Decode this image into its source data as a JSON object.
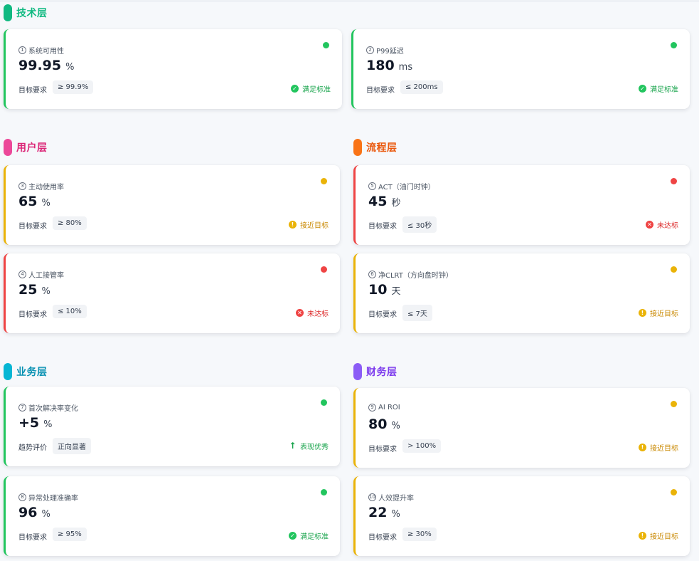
{
  "colors": {
    "green": "#22c55e",
    "yellow": "#eab308",
    "red": "#ef4444",
    "tech": "#10b981",
    "user": "#ec4899",
    "process": "#f97316",
    "business": "#06b6d4",
    "finance": "#8b5cf6"
  },
  "sections": {
    "tech": "技术层",
    "user": "用户层",
    "process": "流程层",
    "business": "业务层",
    "finance": "财务层"
  },
  "cards": [
    {
      "num": "1",
      "name": "系统可用性",
      "value": "99.95",
      "unit": "%",
      "target_label": "目标要求",
      "target": "≥ 99.9%",
      "status": "满足标准",
      "status_kind": "ok",
      "dot": "green"
    },
    {
      "num": "2",
      "name": "P99延迟",
      "value": "180",
      "unit": "ms",
      "target_label": "目标要求",
      "target": "≤ 200ms",
      "status": "满足标准",
      "status_kind": "ok",
      "dot": "green"
    },
    {
      "num": "3",
      "name": "主动使用率",
      "value": "65",
      "unit": "%",
      "target_label": "目标要求",
      "target": "≥ 80%",
      "status": "接近目标",
      "status_kind": "warn",
      "dot": "yellow"
    },
    {
      "num": "4",
      "name": "人工接管率",
      "value": "25",
      "unit": "%",
      "target_label": "目标要求",
      "target": "≤ 10%",
      "status": "未达标",
      "status_kind": "bad",
      "dot": "red"
    },
    {
      "num": "5",
      "name": "ACT（油门时钟）",
      "value": "45",
      "unit": "秒",
      "target_label": "目标要求",
      "target": "≤ 30秒",
      "status": "未达标",
      "status_kind": "bad",
      "dot": "red"
    },
    {
      "num": "6",
      "name": "净CLRT（方向盘时钟）",
      "value": "10",
      "unit": "天",
      "target_label": "目标要求",
      "target": "≤ 7天",
      "status": "接近目标",
      "status_kind": "warn",
      "dot": "yellow"
    },
    {
      "num": "7",
      "name": "首次解决率变化",
      "value": "+5",
      "unit": "%",
      "target_label": "趋势评价",
      "target": "正向显著",
      "status": "表现优秀",
      "status_kind": "up",
      "dot": "green"
    },
    {
      "num": "8",
      "name": "异常处理准确率",
      "value": "96",
      "unit": "%",
      "target_label": "目标要求",
      "target": "≥ 95%",
      "status": "满足标准",
      "status_kind": "ok",
      "dot": "green"
    },
    {
      "num": "9",
      "name": "AI ROI",
      "value": "80",
      "unit": "%",
      "target_label": "目标要求",
      "target": "> 100%",
      "status": "接近目标",
      "status_kind": "warn",
      "dot": "yellow"
    },
    {
      "num": "10",
      "name": "人效提升率",
      "value": "22",
      "unit": "%",
      "target_label": "目标要求",
      "target": "≥ 30%",
      "status": "接近目标",
      "status_kind": "warn",
      "dot": "yellow"
    }
  ]
}
